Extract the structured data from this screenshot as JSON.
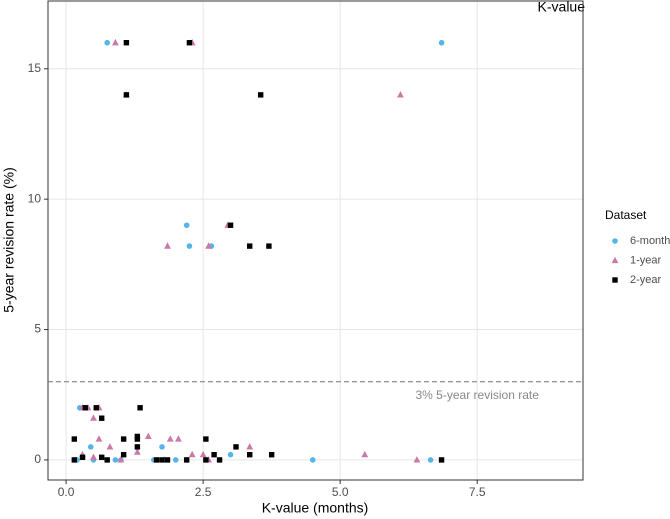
{
  "chart_data": {
    "type": "scatter",
    "title": "K-value",
    "x_label": "K-value (months)",
    "y_label": "5-year revision rate (%)",
    "xlim": [
      -0.33,
      9.43
    ],
    "ylim": [
      -0.77,
      17.6
    ],
    "xticks": [
      {
        "value": 0,
        "label": "0.0"
      },
      {
        "value": 2.5,
        "label": "2.5"
      },
      {
        "value": 5,
        "label": "5.0"
      },
      {
        "value": 7.5,
        "label": "7.5"
      }
    ],
    "yticks": [
      0,
      5,
      10,
      15
    ],
    "grid": true,
    "legend_title": "Dataset",
    "reference_line": {
      "value": 3,
      "label": "3% 5-year revision rate",
      "label_x": 7.5,
      "label_y": 2.45
    },
    "series": [
      {
        "name": "6-month",
        "color": "#56B4E9",
        "shape": "circle",
        "x": [
          0.75,
          6.85,
          2.2,
          2.25,
          2.65,
          0.25,
          0.45,
          1.75,
          0.2,
          0.5,
          0.9,
          1.0,
          1.6,
          2.0,
          2.2,
          3.0,
          4.5,
          6.65
        ],
        "values": [
          16,
          16,
          9,
          8.2,
          8.2,
          2,
          0.5,
          0.5,
          0,
          0,
          0,
          0,
          0,
          0,
          0,
          0.2,
          0,
          0
        ]
      },
      {
        "name": "1-year",
        "color": "#CC79A7",
        "shape": "triangle",
        "x": [
          0.9,
          2.3,
          1.1,
          6.1,
          1.85,
          2.6,
          2.95,
          0.3,
          0.4,
          0.6,
          0.5,
          0.6,
          1.5,
          1.9,
          2.05,
          2.5,
          2.3,
          0.8,
          0.3,
          1.3,
          3.35,
          5.45,
          6.4,
          0.5,
          1.0,
          1.8,
          2.6
        ],
        "values": [
          16,
          16,
          14,
          14,
          8.2,
          8.2,
          9,
          2,
          2,
          2,
          1.6,
          0.8,
          0.9,
          0.8,
          0.8,
          0.2,
          0.2,
          0.5,
          0.2,
          0.3,
          0.5,
          0.2,
          0,
          0.1,
          0,
          0,
          0
        ]
      },
      {
        "name": "2-year",
        "color": "#000000",
        "shape": "square",
        "x": [
          1.1,
          2.25,
          1.1,
          3.55,
          3.0,
          3.35,
          3.7,
          0.35,
          0.55,
          1.35,
          0.65,
          0.15,
          1.05,
          1.3,
          1.3,
          0.15,
          0.3,
          0.65,
          0.75,
          1.3,
          1.05,
          1.65,
          1.75,
          1.85,
          2.2,
          2.55,
          2.55,
          2.7,
          2.8,
          3.1,
          3.35,
          3.75,
          6.85
        ],
        "values": [
          16,
          16,
          14,
          14,
          9,
          8.2,
          8.2,
          2,
          2,
          2,
          1.6,
          0.8,
          0.8,
          0.8,
          0.9,
          0,
          0.1,
          0.1,
          0,
          0.5,
          0.2,
          0,
          0,
          0,
          0,
          0.8,
          0,
          0.2,
          0,
          0.5,
          0.2,
          0.2,
          0
        ]
      }
    ]
  }
}
